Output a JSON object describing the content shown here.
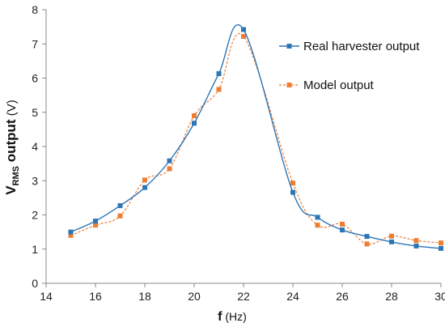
{
  "chart_data": {
    "type": "line",
    "xlabel": {
      "main": "f",
      "unit": " (Hz)"
    },
    "ylabel": {
      "v": "V",
      "sub": "RMS",
      "main": " output",
      "unit": " (V)"
    },
    "xlim": [
      14,
      30
    ],
    "ylim": [
      0,
      8
    ],
    "xticks": [
      "14",
      "16",
      "18",
      "20",
      "22",
      "24",
      "26",
      "28",
      "30"
    ],
    "yticks": [
      "0",
      "1",
      "2",
      "3",
      "4",
      "5",
      "6",
      "7",
      "8"
    ],
    "grid": false,
    "legend_position": "top-right",
    "series": [
      {
        "name": "Real harvester output",
        "color": "#2e75b6",
        "line_style": "solid",
        "marker": "square",
        "x": [
          15,
          16,
          17,
          18,
          19,
          20,
          21,
          22,
          24,
          25,
          26,
          27,
          28,
          29,
          30
        ],
        "y": [
          1.5,
          1.82,
          2.27,
          2.8,
          3.58,
          4.68,
          6.13,
          7.42,
          2.66,
          1.93,
          1.56,
          1.37,
          1.21,
          1.09,
          1.02
        ]
      },
      {
        "name": "Model output",
        "color": "#ed7d31",
        "line_style": "dashed",
        "marker": "square",
        "x": [
          15,
          16,
          17,
          18,
          19,
          20,
          21,
          22,
          24,
          25,
          26,
          27,
          28,
          29,
          30
        ],
        "y": [
          1.4,
          1.7,
          1.97,
          3.02,
          3.35,
          4.9,
          5.67,
          7.22,
          2.93,
          1.7,
          1.73,
          1.15,
          1.38,
          1.25,
          1.18
        ]
      }
    ]
  }
}
